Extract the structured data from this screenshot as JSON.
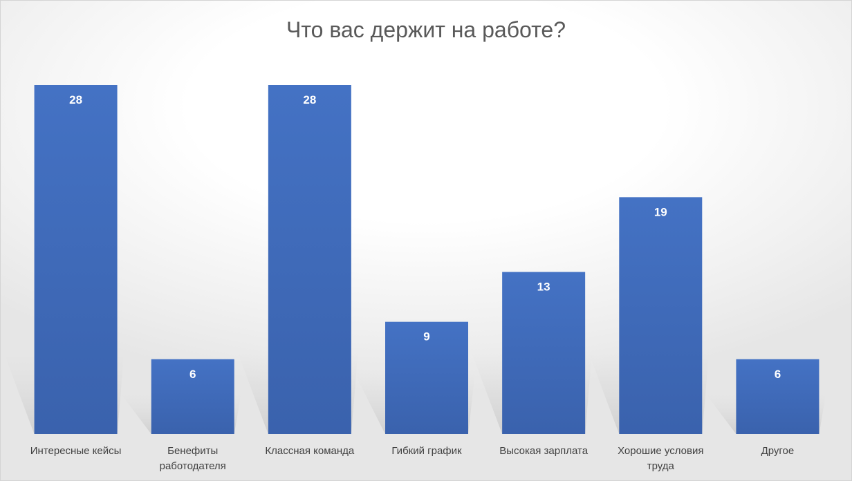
{
  "chart_data": {
    "type": "bar",
    "title": "Что вас держит на работе?",
    "categories": [
      [
        "Интересные кейсы"
      ],
      [
        "Бенефиты",
        "работодателя"
      ],
      [
        "Классная команда"
      ],
      [
        "Гибкий график"
      ],
      [
        "Высокая зарплата"
      ],
      [
        "Хорошие  условия",
        "труда"
      ],
      [
        "Другое"
      ]
    ],
    "values": [
      28,
      6,
      28,
      9,
      13,
      19,
      6
    ],
    "ylim": [
      0,
      28
    ],
    "grid": false,
    "legend": "none",
    "bar_color": "#4472c4",
    "bar_color_dark": "#3a62ad"
  }
}
